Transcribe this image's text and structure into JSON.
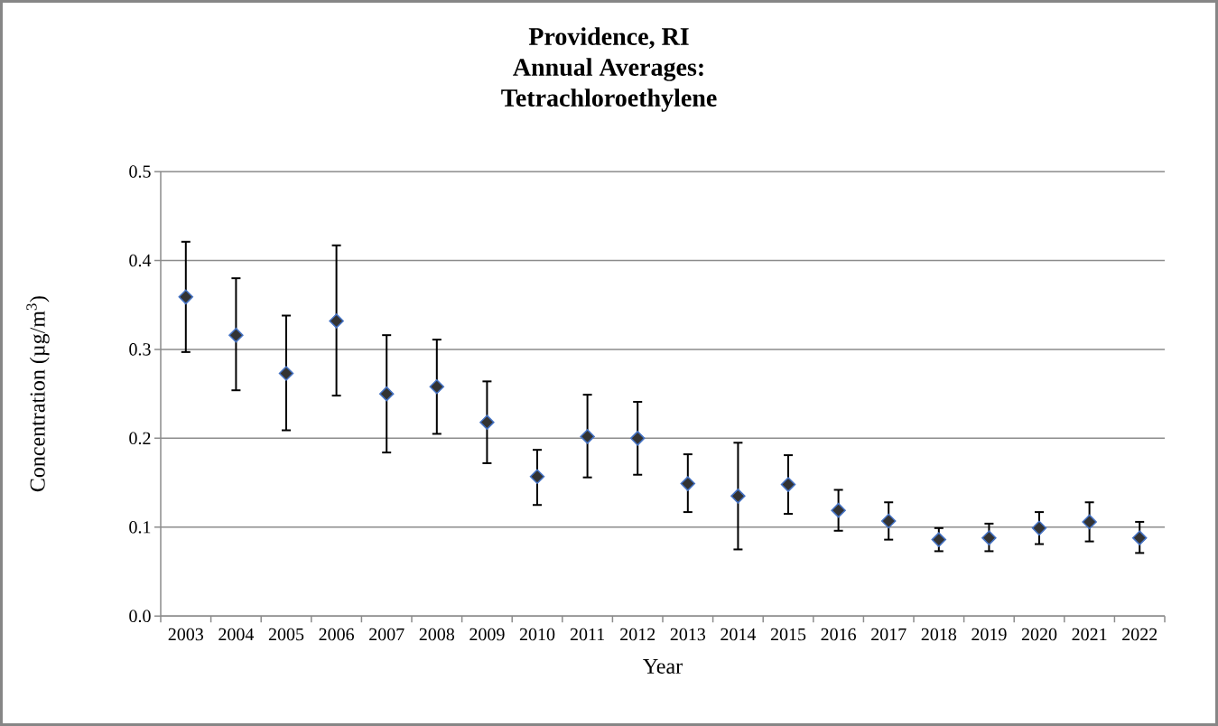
{
  "chart_data": {
    "type": "scatter",
    "title": "Providence, RI Annual Averages: Tetrachloroethylene",
    "xlabel": "Year",
    "ylabel": "Concentration (µg/m$^{3}$)",
    "categories": [
      "2003",
      "2004",
      "2005",
      "2006",
      "2007",
      "2008",
      "2009",
      "2010",
      "2011",
      "2012",
      "2013",
      "2014",
      "2015",
      "2016",
      "2017",
      "2018",
      "2019",
      "2020",
      "2021",
      "2022"
    ],
    "values": [
      0.359,
      0.316,
      0.273,
      0.332,
      0.25,
      0.258,
      0.218,
      0.157,
      0.202,
      0.2,
      0.149,
      0.135,
      0.148,
      0.119,
      0.107,
      0.086,
      0.088,
      0.099,
      0.106,
      0.088
    ],
    "errors": [
      [
        0.297,
        0.421
      ],
      [
        0.254,
        0.38
      ],
      [
        0.209,
        0.338
      ],
      [
        0.248,
        0.417
      ],
      [
        0.184,
        0.316
      ],
      [
        0.205,
        0.311
      ],
      [
        0.172,
        0.264
      ],
      [
        0.125,
        0.187
      ],
      [
        0.156,
        0.249
      ],
      [
        0.159,
        0.241
      ],
      [
        0.117,
        0.182
      ],
      [
        0.075,
        0.195
      ],
      [
        0.115,
        0.181
      ],
      [
        0.096,
        0.142
      ],
      [
        0.086,
        0.128
      ],
      [
        0.073,
        0.099
      ],
      [
        0.073,
        0.104
      ],
      [
        0.081,
        0.117
      ],
      [
        0.084,
        0.128
      ],
      [
        0.071,
        0.106
      ]
    ],
    "color": "#333333",
    "marker": "diamond",
    "ylim": [
      0,
      0.5
    ],
    "yticks": [
      {
        "value": 0,
        "label": "0.0"
      },
      0.1,
      0.2,
      0.3,
      0.4,
      0.5
    ],
    "grid": "y"
  }
}
